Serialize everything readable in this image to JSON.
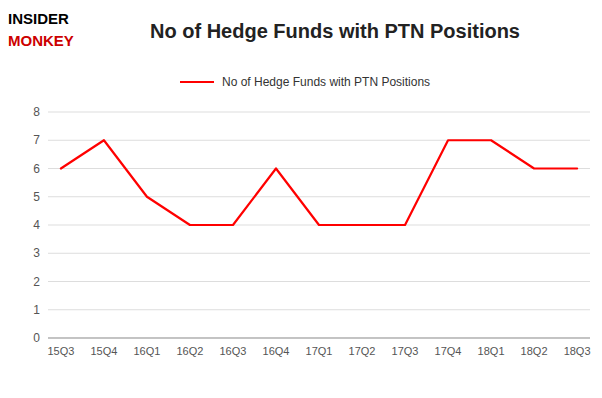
{
  "chart_data": {
    "type": "line",
    "title": "No of Hedge Funds with PTN Positions",
    "annotations": [
      "INSIDER",
      "MONKEY"
    ],
    "categories": [
      "15Q3",
      "15Q4",
      "16Q1",
      "16Q2",
      "16Q3",
      "16Q4",
      "17Q1",
      "17Q2",
      "17Q3",
      "17Q4",
      "18Q1",
      "18Q2",
      "18Q3"
    ],
    "series": [
      {
        "name": "No of Hedge Funds with PTN Positions",
        "color": "#ff0000",
        "values": [
          6,
          7,
          5,
          4,
          4,
          6,
          4,
          4,
          4,
          7,
          7,
          6,
          6
        ]
      }
    ],
    "ylim": [
      0,
      8
    ],
    "yticks": [
      0,
      1,
      2,
      3,
      4,
      5,
      6,
      7,
      8
    ],
    "grid": true,
    "legend": "top"
  }
}
